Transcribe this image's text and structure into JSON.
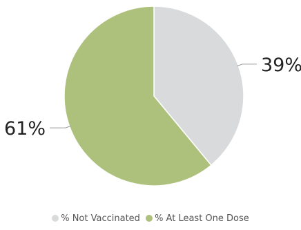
{
  "chart_data": {
    "type": "pie",
    "title": "",
    "slices": [
      {
        "label": "% Not Vaccinated",
        "value": 39,
        "display": "39%",
        "color": "#d8dadc"
      },
      {
        "label": "% At Least One Dose",
        "value": 61,
        "display": "61%",
        "color": "#adc07c"
      }
    ],
    "start": "top",
    "direction": "clockwise",
    "legend_position": "bottom"
  }
}
